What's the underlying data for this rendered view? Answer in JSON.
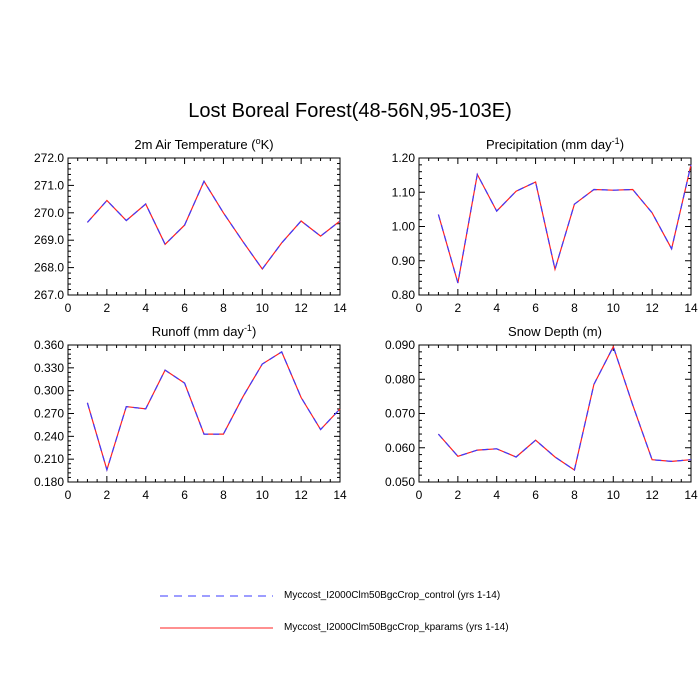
{
  "title": "Lost Boreal Forest(48-56N,95-103E)",
  "colors": {
    "control": "#3b3bff",
    "kparams": "#ff2020"
  },
  "legend": [
    {
      "label": "Myccost_I2000Clm50BgcCrop_control (yrs 1-14)",
      "style": "dashed",
      "color": "#3b3bff"
    },
    {
      "label": "Myccost_I2000Clm50BgcCrop_kparams (yrs 1-14)",
      "style": "solid",
      "color": "#ff2020"
    }
  ],
  "chart_data": [
    {
      "type": "line",
      "title": "2m Air Temperature (°K)",
      "title_main": "2m Air Temperature (",
      "title_sup": "o",
      "title_end": "K)",
      "xlim": [
        0,
        14
      ],
      "ylim": [
        267.0,
        272.0
      ],
      "xticks": [
        "0",
        "2",
        "4",
        "6",
        "8",
        "10",
        "12",
        "14"
      ],
      "yticks": [
        "267.0",
        "268.0",
        "269.0",
        "270.0",
        "271.0",
        "272.0"
      ],
      "x": [
        1,
        2,
        3,
        4,
        5,
        6,
        7,
        8,
        9,
        10,
        11,
        12,
        13,
        14
      ],
      "series": [
        {
          "name": "Myccost_I2000Clm50BgcCrop_control (yrs 1-14)",
          "values": [
            269.65,
            270.45,
            269.72,
            270.32,
            268.85,
            269.55,
            271.15,
            270.0,
            268.95,
            267.95,
            268.9,
            269.7,
            269.15,
            269.7
          ]
        },
        {
          "name": "Myccost_I2000Clm50BgcCrop_kparams (yrs 1-14)",
          "values": [
            269.65,
            270.45,
            269.72,
            270.32,
            268.85,
            269.55,
            271.15,
            270.0,
            268.95,
            267.95,
            268.9,
            269.7,
            269.15,
            269.7
          ]
        }
      ]
    },
    {
      "type": "line",
      "title": "Precipitation (mm day-1)",
      "title_main": "Precipitation (mm day",
      "title_sup": "-1",
      "title_end": ")",
      "xlim": [
        0,
        14
      ],
      "ylim": [
        0.8,
        1.2
      ],
      "xticks": [
        "0",
        "2",
        "4",
        "6",
        "8",
        "10",
        "12",
        "14"
      ],
      "yticks": [
        "0.80",
        "0.90",
        "1.00",
        "1.10",
        "1.20"
      ],
      "x": [
        1,
        2,
        3,
        4,
        5,
        6,
        7,
        8,
        9,
        10,
        11,
        12,
        13,
        14
      ],
      "series": [
        {
          "name": "Myccost_I2000Clm50BgcCrop_control (yrs 1-14)",
          "values": [
            1.035,
            0.835,
            1.152,
            1.045,
            1.103,
            1.13,
            0.875,
            1.065,
            1.108,
            1.106,
            1.108,
            1.04,
            0.935,
            1.18
          ]
        },
        {
          "name": "Myccost_I2000Clm50BgcCrop_kparams (yrs 1-14)",
          "values": [
            1.035,
            0.835,
            1.152,
            1.045,
            1.103,
            1.13,
            0.875,
            1.065,
            1.108,
            1.106,
            1.108,
            1.04,
            0.935,
            1.18
          ]
        }
      ]
    },
    {
      "type": "line",
      "title": "Runoff (mm day-1)",
      "title_main": "Runoff (mm day",
      "title_sup": "-1",
      "title_end": ")",
      "xlim": [
        0,
        14
      ],
      "ylim": [
        0.18,
        0.36
      ],
      "xticks": [
        "0",
        "2",
        "4",
        "6",
        "8",
        "10",
        "12",
        "14"
      ],
      "yticks": [
        "0.180",
        "0.210",
        "0.240",
        "0.270",
        "0.300",
        "0.330",
        "0.360"
      ],
      "x": [
        1,
        2,
        3,
        4,
        5,
        6,
        7,
        8,
        9,
        10,
        11,
        12,
        13,
        14
      ],
      "series": [
        {
          "name": "Myccost_I2000Clm50BgcCrop_control (yrs 1-14)",
          "values": [
            0.284,
            0.196,
            0.279,
            0.276,
            0.327,
            0.31,
            0.243,
            0.243,
            0.292,
            0.335,
            0.351,
            0.291,
            0.249,
            0.276
          ]
        },
        {
          "name": "Myccost_I2000Clm50BgcCrop_kparams (yrs 1-14)",
          "values": [
            0.284,
            0.196,
            0.279,
            0.276,
            0.327,
            0.31,
            0.243,
            0.243,
            0.292,
            0.335,
            0.351,
            0.291,
            0.249,
            0.276
          ]
        }
      ]
    },
    {
      "type": "line",
      "title": "Snow Depth (m)",
      "title_main": "Snow Depth (m)",
      "title_sup": "",
      "title_end": "",
      "xlim": [
        0,
        14
      ],
      "ylim": [
        0.05,
        0.09
      ],
      "xticks": [
        "0",
        "2",
        "4",
        "6",
        "8",
        "10",
        "12",
        "14"
      ],
      "yticks": [
        "0.050",
        "0.060",
        "0.070",
        "0.080",
        "0.090"
      ],
      "x": [
        1,
        2,
        3,
        4,
        5,
        6,
        7,
        8,
        9,
        10,
        11,
        12,
        13,
        14
      ],
      "series": [
        {
          "name": "Myccost_I2000Clm50BgcCrop_control (yrs 1-14)",
          "values": [
            0.064,
            0.0575,
            0.0593,
            0.0597,
            0.0573,
            0.0622,
            0.0573,
            0.0535,
            0.0785,
            0.0895,
            0.0725,
            0.0565,
            0.056,
            0.0565
          ]
        },
        {
          "name": "Myccost_I2000Clm50BgcCrop_kparams (yrs 1-14)",
          "values": [
            0.064,
            0.0575,
            0.0593,
            0.0597,
            0.0573,
            0.0622,
            0.0573,
            0.0535,
            0.0785,
            0.0895,
            0.0725,
            0.0565,
            0.056,
            0.0565
          ]
        }
      ]
    }
  ]
}
